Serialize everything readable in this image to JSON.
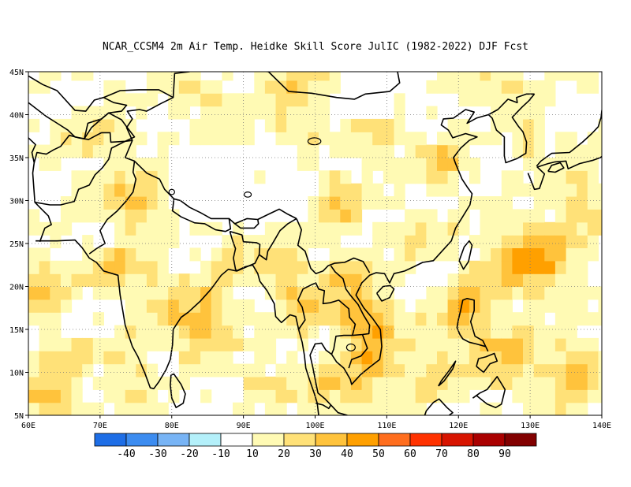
{
  "title": "NCAR_CCSM4  2m Air Temp. Heidke Skill Score JulIC (1982-2022) DJF Fcst",
  "map": {
    "lon_range": [
      60,
      140
    ],
    "lat_range": [
      5,
      45
    ],
    "x_ticks": [
      "60E",
      "70E",
      "80E",
      "90E",
      "100E",
      "110E",
      "120E",
      "130E",
      "140E"
    ],
    "y_ticks": [
      "5N",
      "10N",
      "15N",
      "20N",
      "25N",
      "30N",
      "35N",
      "40N",
      "45N"
    ],
    "grid": "dotted"
  },
  "colorbar": {
    "colors": [
      "#1e6ee6",
      "#3c8cf0",
      "#78b4f5",
      "#b4f0fa",
      "#ffffff",
      "#fffab4",
      "#ffe178",
      "#ffc33c",
      "#ffa000",
      "#ff6e1e",
      "#ff3200",
      "#d71400",
      "#aa0000",
      "#820000"
    ],
    "labels": [
      "-40",
      "-30",
      "-20",
      "-10",
      "10",
      "20",
      "30",
      "40",
      "50",
      "60",
      "70",
      "80",
      "90"
    ]
  }
}
